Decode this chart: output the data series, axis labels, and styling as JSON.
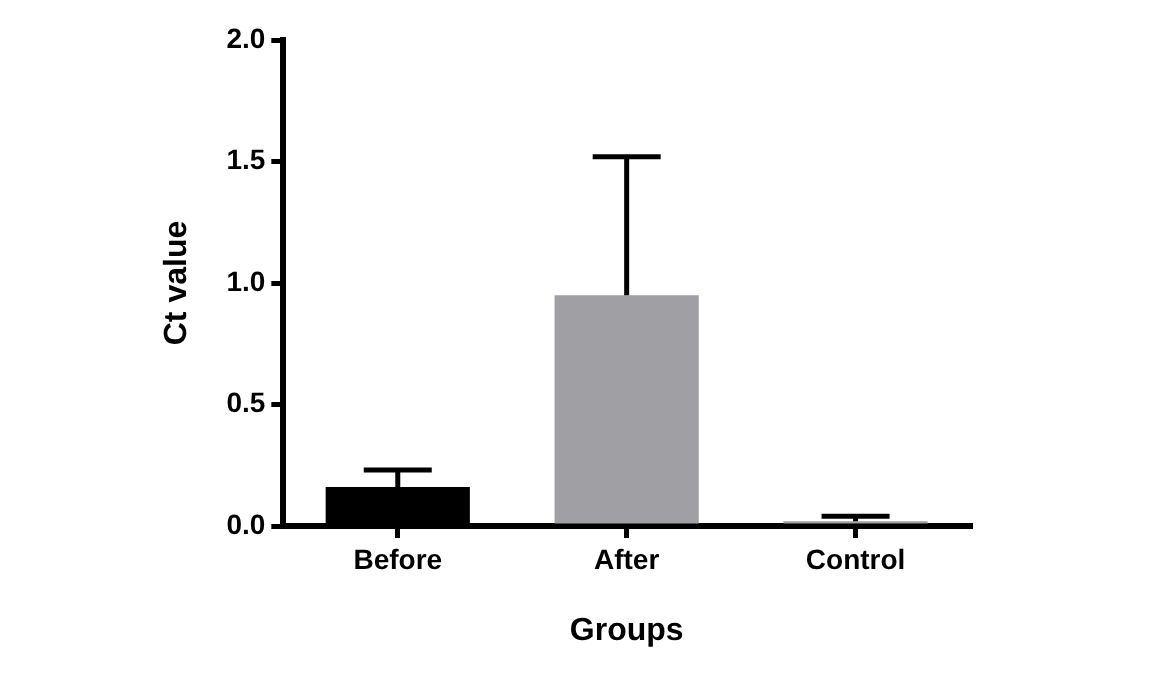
{
  "chart_data": {
    "type": "bar",
    "xlabel": "Groups",
    "ylabel": "Ct value",
    "categories": [
      "Before",
      "After",
      "Control"
    ],
    "values": [
      0.16,
      0.95,
      0.02
    ],
    "colors": [
      "#000000",
      "#a0a0a4",
      "#a0a0a4"
    ],
    "errors": [
      [
        0.16,
        0.23
      ],
      [
        0.95,
        1.52
      ],
      [
        0.02,
        0.04
      ]
    ],
    "ylim": [
      0,
      2
    ],
    "yticks": [
      {
        "value": 0,
        "label": "0.0"
      },
      {
        "value": 0.5,
        "label": "0.5"
      },
      {
        "value": 1,
        "label": "1.0"
      },
      {
        "value": 1.5,
        "label": "1.5"
      },
      {
        "value": 2,
        "label": "2.0"
      }
    ],
    "grid": false,
    "legend": false
  }
}
